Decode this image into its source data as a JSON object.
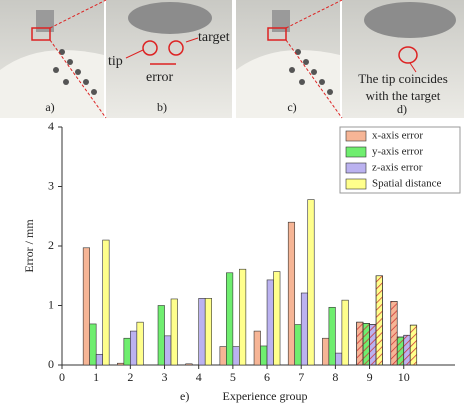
{
  "photos": {
    "labels": [
      "a)",
      "b)",
      "c)",
      "d)"
    ],
    "annotations": [
      "tip",
      "error",
      "target",
      "The tip coincides",
      "with the target"
    ]
  },
  "chart_data": {
    "type": "bar",
    "label": "e)",
    "x_label": "Experience group",
    "y_label": "Error / mm",
    "x": [
      1,
      2,
      3,
      4,
      5,
      6,
      7,
      8,
      9,
      10
    ],
    "xlim": [
      0,
      11.5
    ],
    "xticks": [
      0,
      1,
      2,
      3,
      4,
      5,
      6,
      7,
      8,
      9,
      10
    ],
    "ylim": [
      0,
      4
    ],
    "yticks": [
      0,
      1,
      2,
      3,
      4
    ],
    "hatched": [
      false,
      false,
      false,
      false,
      false,
      false,
      false,
      false,
      true,
      true
    ],
    "legend": "top-right",
    "series": [
      {
        "name": "x-axis error",
        "color": "#f6b596",
        "values": [
          1.97,
          0.03,
          0.0,
          0.02,
          0.31,
          0.57,
          2.4,
          0.45,
          0.72,
          1.07
        ]
      },
      {
        "name": "y-axis error",
        "color": "#6fee6f",
        "values": [
          0.69,
          0.45,
          1.0,
          0.0,
          1.55,
          0.32,
          0.68,
          0.97,
          0.7,
          0.47
        ]
      },
      {
        "name": "z-axis error",
        "color": "#bbb2f0",
        "values": [
          0.18,
          0.57,
          0.49,
          1.12,
          0.31,
          1.43,
          1.21,
          0.2,
          0.68,
          0.5
        ]
      },
      {
        "name": "Spatial distance",
        "color": "#ffff8c",
        "values": [
          2.1,
          0.72,
          1.11,
          1.12,
          1.61,
          1.57,
          2.78,
          1.09,
          1.5,
          0.67
        ]
      }
    ]
  }
}
